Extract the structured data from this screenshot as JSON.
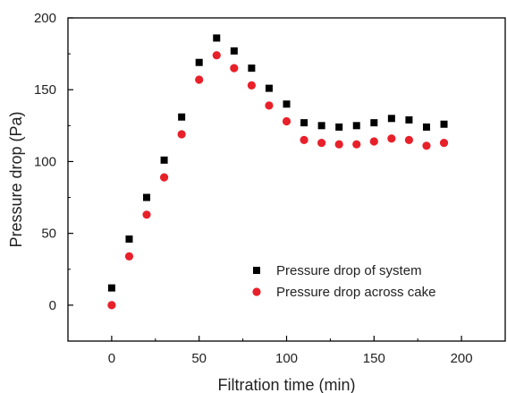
{
  "chart_data": {
    "type": "scatter",
    "title": "",
    "xlabel": "Filtration time (min)",
    "ylabel": "Pressure drop (Pa)",
    "xlim": [
      -25,
      225
    ],
    "ylim": [
      -25,
      200
    ],
    "xticks": [
      0,
      50,
      100,
      150,
      200
    ],
    "yticks": [
      0,
      50,
      100,
      150,
      200
    ],
    "grid": false,
    "legend_position": "lower-right",
    "series": [
      {
        "name": "Pressure drop of system",
        "marker": "square",
        "color": "#000000",
        "x": [
          0,
          10,
          20,
          30,
          40,
          50,
          60,
          70,
          80,
          90,
          100,
          110,
          120,
          130,
          140,
          150,
          160,
          170,
          180,
          190
        ],
        "y": [
          12,
          46,
          75,
          101,
          131,
          169,
          186,
          177,
          165,
          151,
          140,
          127,
          125,
          124,
          125,
          127,
          130,
          129,
          124,
          126
        ]
      },
      {
        "name": "Pressure drop across cake",
        "marker": "circle",
        "color": "#e8202a",
        "x": [
          0,
          10,
          20,
          30,
          40,
          50,
          60,
          70,
          80,
          90,
          100,
          110,
          120,
          130,
          140,
          150,
          160,
          170,
          180,
          190
        ],
        "y": [
          0,
          34,
          63,
          89,
          119,
          157,
          174,
          165,
          153,
          139,
          128,
          115,
          113,
          112,
          112,
          114,
          116,
          115,
          111,
          113
        ]
      }
    ]
  }
}
